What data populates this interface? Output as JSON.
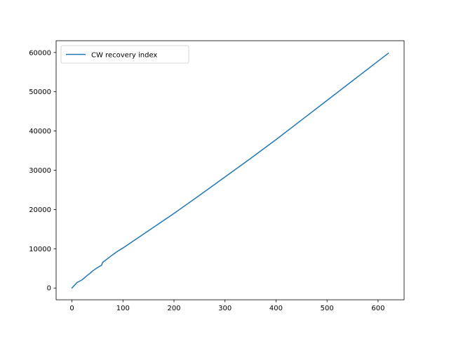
{
  "chart_data": {
    "type": "line",
    "title": "",
    "xlabel": "",
    "ylabel": "",
    "xlim": [
      -31,
      651
    ],
    "ylim": [
      -3000,
      63000
    ],
    "x_ticks": [
      0,
      100,
      200,
      300,
      400,
      500,
      600
    ],
    "y_ticks": [
      0,
      10000,
      20000,
      30000,
      40000,
      50000,
      60000
    ],
    "grid": false,
    "legend": {
      "position": "upper-left"
    },
    "series": [
      {
        "name": "CW recovery index",
        "color": "#1f77b4",
        "x": [
          0,
          5,
          10,
          20,
          30,
          35,
          40,
          50,
          58,
          60,
          70,
          80,
          90,
          100,
          150,
          200,
          250,
          300,
          350,
          400,
          450,
          500,
          550,
          600,
          620
        ],
        "y": [
          0,
          700,
          1400,
          2100,
          3200,
          3700,
          4300,
          5200,
          5800,
          6500,
          7500,
          8500,
          9400,
          10200,
          14600,
          19000,
          23600,
          28300,
          33000,
          37800,
          42800,
          47800,
          52800,
          57800,
          59800
        ]
      }
    ]
  }
}
